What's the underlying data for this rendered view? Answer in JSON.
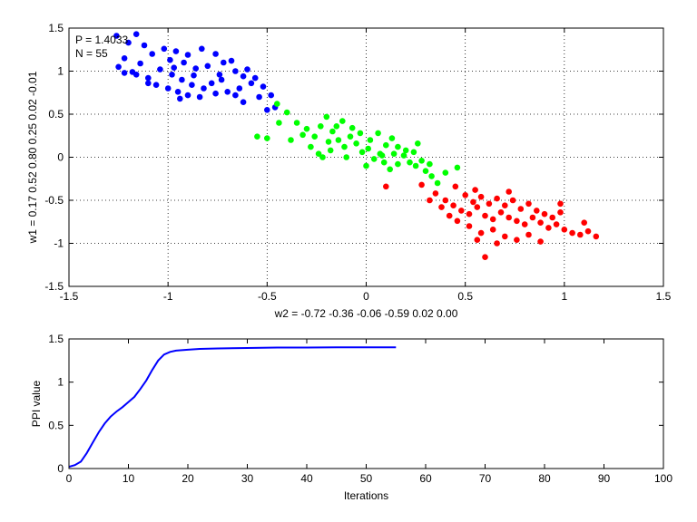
{
  "chart_data": [
    {
      "type": "scatter",
      "title": "",
      "xlabel": "w2 = -0.72  -0.36  -0.06  -0.59  0.02  0.00",
      "ylabel": "w1 = 0.17  0.52  0.80  0.25  0.02  -0.01",
      "xlim": [
        -1.5,
        1.5
      ],
      "ylim": [
        -1.5,
        1.5
      ],
      "xticks": [
        "-1.5",
        "-1",
        "-0.5",
        "0",
        "0.5",
        "1",
        "1.5"
      ],
      "yticks": [
        "-1.5",
        "-1",
        "-0.5",
        "0",
        "0.5",
        "1",
        "1.5"
      ],
      "grid": "dotted",
      "annotations": [
        "P = 1.4033",
        "N = 55"
      ],
      "colors": {
        "blue_cluster": "#0000ff",
        "green_cluster": "#00ff00",
        "red_cluster": "#ff0000"
      },
      "series": [
        {
          "color": "#0000ff",
          "points": [
            [
              -1.26,
              1.41
            ],
            [
              -1.2,
              1.33
            ],
            [
              -1.16,
              1.43
            ],
            [
              -1.12,
              1.3
            ],
            [
              -1.22,
              1.15
            ],
            [
              -1.25,
              1.05
            ],
            [
              -1.18,
              0.99
            ],
            [
              -1.14,
              1.09
            ],
            [
              -1.08,
              1.2
            ],
            [
              -1.02,
              1.26
            ],
            [
              -0.96,
              1.23
            ],
            [
              -0.9,
              1.19
            ],
            [
              -0.83,
              1.26
            ],
            [
              -0.76,
              1.2
            ],
            [
              -0.72,
              1.1
            ],
            [
              -0.66,
              1.0
            ],
            [
              -0.62,
              0.94
            ],
            [
              -0.58,
              0.86
            ],
            [
              -0.64,
              0.8
            ],
            [
              -0.7,
              0.76
            ],
            [
              -0.76,
              0.74
            ],
            [
              -0.82,
              0.8
            ],
            [
              -0.88,
              0.84
            ],
            [
              -0.93,
              0.9
            ],
            [
              -0.98,
              0.96
            ],
            [
              -1.04,
              1.02
            ],
            [
              -1.1,
              0.92
            ],
            [
              -1.06,
              0.84
            ],
            [
              -1.0,
              0.8
            ],
            [
              -0.95,
              0.76
            ],
            [
              -0.9,
              0.72
            ],
            [
              -0.84,
              0.7
            ],
            [
              -0.78,
              0.86
            ],
            [
              -0.74,
              0.96
            ],
            [
              -0.86,
              1.03
            ],
            [
              -0.92,
              1.1
            ],
            [
              -0.97,
              1.04
            ],
            [
              -0.8,
              1.06
            ],
            [
              -0.68,
              1.12
            ],
            [
              -0.6,
              1.02
            ],
            [
              -0.56,
              0.92
            ],
            [
              -0.52,
              0.82
            ],
            [
              -0.54,
              0.7
            ],
            [
              -0.62,
              0.64
            ],
            [
              -0.66,
              0.72
            ],
            [
              -0.94,
              0.68
            ],
            [
              -1.1,
              0.86
            ],
            [
              -1.16,
              0.96
            ],
            [
              -1.22,
              0.98
            ],
            [
              -0.46,
              0.58
            ],
            [
              -0.5,
              0.55
            ],
            [
              -0.48,
              0.72
            ],
            [
              -0.99,
              1.13
            ],
            [
              -0.87,
              0.95
            ],
            [
              -0.73,
              0.9
            ]
          ]
        },
        {
          "color": "#00ff00",
          "points": [
            [
              -0.45,
              0.62
            ],
            [
              -0.4,
              0.52
            ],
            [
              -0.35,
              0.4
            ],
            [
              -0.3,
              0.33
            ],
            [
              -0.26,
              0.24
            ],
            [
              -0.23,
              0.36
            ],
            [
              -0.2,
              0.47
            ],
            [
              -0.17,
              0.3
            ],
            [
              -0.14,
              0.2
            ],
            [
              -0.11,
              0.12
            ],
            [
              -0.08,
              0.24
            ],
            [
              -0.05,
              0.16
            ],
            [
              -0.02,
              0.06
            ],
            [
              0.01,
              0.1
            ],
            [
              0.04,
              -0.02
            ],
            [
              0.07,
              0.04
            ],
            [
              0.1,
              0.14
            ],
            [
              0.13,
              0.22
            ],
            [
              0.16,
              0.12
            ],
            [
              0.19,
              0.02
            ],
            [
              0.22,
              -0.06
            ],
            [
              0.25,
              -0.1
            ],
            [
              0.28,
              -0.04
            ],
            [
              -0.28,
              0.12
            ],
            [
              -0.24,
              0.04
            ],
            [
              -0.19,
              0.18
            ],
            [
              -0.15,
              0.36
            ],
            [
              -0.12,
              0.42
            ],
            [
              -0.07,
              0.34
            ],
            [
              -0.03,
              0.28
            ],
            [
              0.02,
              0.2
            ],
            [
              0.06,
              0.28
            ],
            [
              0.09,
              -0.06
            ],
            [
              0.12,
              -0.14
            ],
            [
              0.16,
              -0.08
            ],
            [
              0.2,
              0.08
            ],
            [
              0.24,
              0.06
            ],
            [
              0.3,
              -0.16
            ],
            [
              0.33,
              -0.22
            ],
            [
              0.36,
              -0.3
            ],
            [
              -0.55,
              0.24
            ],
            [
              -0.5,
              0.22
            ],
            [
              -0.44,
              0.4
            ],
            [
              -0.38,
              0.2
            ],
            [
              -0.32,
              0.26
            ],
            [
              -0.22,
              0.0
            ],
            [
              -0.18,
              0.08
            ],
            [
              -0.1,
              0.0
            ],
            [
              0.0,
              -0.1
            ],
            [
              0.08,
              0.02
            ],
            [
              0.14,
              0.04
            ],
            [
              0.26,
              0.16
            ],
            [
              0.32,
              -0.08
            ],
            [
              0.4,
              -0.18
            ],
            [
              0.46,
              -0.12
            ]
          ]
        },
        {
          "color": "#ff0000",
          "points": [
            [
              0.28,
              -0.32
            ],
            [
              0.35,
              -0.42
            ],
            [
              0.4,
              -0.5
            ],
            [
              0.44,
              -0.56
            ],
            [
              0.48,
              -0.62
            ],
            [
              0.52,
              -0.66
            ],
            [
              0.56,
              -0.58
            ],
            [
              0.6,
              -0.68
            ],
            [
              0.64,
              -0.72
            ],
            [
              0.68,
              -0.64
            ],
            [
              0.72,
              -0.7
            ],
            [
              0.76,
              -0.74
            ],
            [
              0.8,
              -0.78
            ],
            [
              0.84,
              -0.7
            ],
            [
              0.88,
              -0.76
            ],
            [
              0.92,
              -0.82
            ],
            [
              0.96,
              -0.78
            ],
            [
              1.0,
              -0.84
            ],
            [
              1.04,
              -0.88
            ],
            [
              1.08,
              -0.9
            ],
            [
              1.12,
              -0.86
            ],
            [
              1.16,
              -0.92
            ],
            [
              0.5,
              -0.44
            ],
            [
              0.54,
              -0.52
            ],
            [
              0.58,
              -0.46
            ],
            [
              0.62,
              -0.54
            ],
            [
              0.66,
              -0.48
            ],
            [
              0.7,
              -0.56
            ],
            [
              0.74,
              -0.5
            ],
            [
              0.78,
              -0.6
            ],
            [
              0.82,
              -0.54
            ],
            [
              0.86,
              -0.62
            ],
            [
              0.9,
              -0.66
            ],
            [
              0.94,
              -0.7
            ],
            [
              0.98,
              -0.64
            ],
            [
              0.46,
              -0.74
            ],
            [
              0.52,
              -0.8
            ],
            [
              0.58,
              -0.88
            ],
            [
              0.64,
              -0.84
            ],
            [
              0.7,
              -0.92
            ],
            [
              0.76,
              -0.96
            ],
            [
              0.82,
              -0.9
            ],
            [
              0.88,
              -0.98
            ],
            [
              0.6,
              -1.16
            ],
            [
              0.66,
              -1.0
            ],
            [
              0.56,
              -0.96
            ],
            [
              0.42,
              -0.68
            ],
            [
              0.38,
              -0.58
            ],
            [
              0.32,
              -0.5
            ],
            [
              0.45,
              -0.34
            ],
            [
              0.55,
              -0.38
            ],
            [
              0.72,
              -0.4
            ],
            [
              0.98,
              -0.54
            ],
            [
              1.1,
              -0.76
            ],
            [
              0.1,
              -0.34
            ]
          ]
        }
      ]
    },
    {
      "type": "line",
      "title": "",
      "xlabel": "Iterations",
      "ylabel": "PPI value",
      "xlim": [
        0,
        100
      ],
      "ylim": [
        0,
        1.5
      ],
      "xticks": [
        "0",
        "10",
        "20",
        "30",
        "40",
        "50",
        "60",
        "70",
        "80",
        "90",
        "100"
      ],
      "yticks": [
        "0",
        "0.5",
        "1",
        "1.5"
      ],
      "grid": "off",
      "color": "#0000ff",
      "x": [
        0,
        1,
        2,
        3,
        4,
        5,
        6,
        7,
        8,
        9,
        10,
        11,
        12,
        13,
        14,
        15,
        16,
        17,
        18,
        19,
        20,
        22,
        25,
        30,
        35,
        40,
        45,
        50,
        55
      ],
      "y": [
        0.02,
        0.04,
        0.08,
        0.18,
        0.3,
        0.42,
        0.52,
        0.6,
        0.66,
        0.71,
        0.77,
        0.83,
        0.92,
        1.02,
        1.14,
        1.25,
        1.32,
        1.35,
        1.365,
        1.37,
        1.375,
        1.385,
        1.39,
        1.395,
        1.4,
        1.4,
        1.402,
        1.403,
        1.403
      ]
    }
  ]
}
